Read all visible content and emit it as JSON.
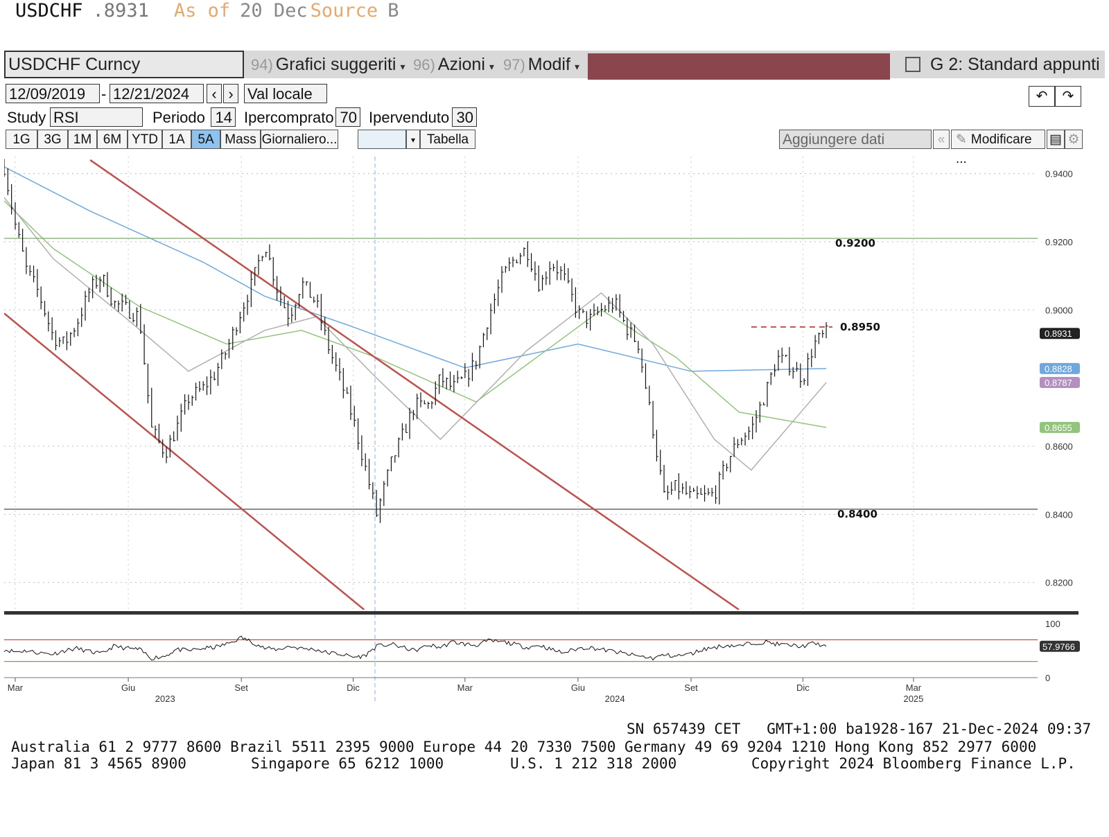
{
  "header": {
    "security": "USDCHF",
    "price": ".8931",
    "as_of_label": "As of",
    "as_of_date": "20 Dec",
    "source_label": "Source",
    "source_value": "B"
  },
  "menubar": {
    "security_field": "USDCHF Curncy",
    "item1_num": "94)",
    "item1_label": "Grafici suggeriti",
    "item2_num": "96)",
    "item2_label": "Azioni",
    "item3_num": "97)",
    "item3_label": "Modif",
    "template_label": "G 2: Standard appunti"
  },
  "controls": {
    "start_date": "12/09/2019",
    "end_date": "12/21/2024",
    "currency": "Val locale",
    "study_label": "Study",
    "study_value": "RSI",
    "period_label": "Periodo",
    "period_value": "14",
    "overbought_label": "Ipercomprato",
    "overbought_value": "70",
    "oversold_label": "Ipervenduto",
    "oversold_value": "30"
  },
  "tabs": [
    "1G",
    "3G",
    "1M",
    "6M",
    "YTD",
    "1A",
    "5A",
    "Mass",
    "Giornaliero..."
  ],
  "active_tab": "5A",
  "table_label": "Tabella",
  "add_data_label": "Aggiungere dati",
  "edit_label": "Modificare ...",
  "chart_data": {
    "type": "line",
    "title": "",
    "xlabel": "",
    "ylabel": "",
    "ylim": [
      0.812,
      0.945
    ],
    "y_ticks": [
      "0.9400",
      "0.9200",
      "0.9000",
      "0.8600",
      "0.8400",
      "0.8200"
    ],
    "y_tick_values": [
      0.94,
      0.92,
      0.9,
      0.86,
      0.84,
      0.82
    ],
    "x_tick_labels": [
      "Mar",
      "Giu",
      "Set",
      "Dic",
      "Mar",
      "Giu",
      "Set",
      "Dic",
      "Mar"
    ],
    "x_tick_dates": [
      "2023-03-01",
      "2023-06-01",
      "2023-09-01",
      "2023-12-01",
      "2024-03-01",
      "2024-06-01",
      "2024-09-01",
      "2024-12-01",
      "2025-03-01"
    ],
    "x_year_labels": [
      "2023",
      "2024",
      "2025"
    ],
    "x_year_dates": [
      "2023-07-01",
      "2024-07-01",
      "2025-03-01"
    ],
    "x_range": [
      "2023-02-20",
      "2025-06-10"
    ],
    "price_series": {
      "name": "USDCHF",
      "dates": [
        "2023-02-20",
        "2023-03-01",
        "2023-03-10",
        "2023-03-20",
        "2023-04-01",
        "2023-04-10",
        "2023-04-20",
        "2023-05-01",
        "2023-05-10",
        "2023-05-20",
        "2023-06-01",
        "2023-06-10",
        "2023-06-20",
        "2023-07-01",
        "2023-07-10",
        "2023-07-20",
        "2023-08-01",
        "2023-08-10",
        "2023-08-20",
        "2023-09-01",
        "2023-09-10",
        "2023-09-20",
        "2023-10-01",
        "2023-10-10",
        "2023-10-20",
        "2023-11-01",
        "2023-11-10",
        "2023-11-20",
        "2023-12-01",
        "2023-12-10",
        "2023-12-20",
        "2024-01-01",
        "2024-01-10",
        "2024-01-20",
        "2024-02-01",
        "2024-02-10",
        "2024-02-20",
        "2024-03-01",
        "2024-03-10",
        "2024-03-20",
        "2024-04-01",
        "2024-04-10",
        "2024-04-20",
        "2024-05-01",
        "2024-05-10",
        "2024-05-20",
        "2024-06-01",
        "2024-06-10",
        "2024-06-20",
        "2024-07-01",
        "2024-07-10",
        "2024-07-20",
        "2024-08-01",
        "2024-08-10",
        "2024-08-20",
        "2024-09-01",
        "2024-09-10",
        "2024-09-20",
        "2024-10-01",
        "2024-10-10",
        "2024-10-20",
        "2024-11-01",
        "2024-11-10",
        "2024-11-20",
        "2024-12-01",
        "2024-12-10",
        "2024-12-20"
      ],
      "values": [
        0.942,
        0.925,
        0.912,
        0.905,
        0.892,
        0.89,
        0.896,
        0.906,
        0.91,
        0.902,
        0.9,
        0.898,
        0.865,
        0.858,
        0.865,
        0.874,
        0.877,
        0.881,
        0.888,
        0.9,
        0.908,
        0.92,
        0.905,
        0.898,
        0.908,
        0.902,
        0.89,
        0.88,
        0.868,
        0.855,
        0.84,
        0.855,
        0.863,
        0.872,
        0.872,
        0.88,
        0.877,
        0.88,
        0.885,
        0.898,
        0.91,
        0.915,
        0.918,
        0.907,
        0.914,
        0.91,
        0.899,
        0.897,
        0.9,
        0.902,
        0.895,
        0.89,
        0.865,
        0.845,
        0.848,
        0.845,
        0.845,
        0.846,
        0.856,
        0.862,
        0.865,
        0.876,
        0.886,
        0.884,
        0.88,
        0.89,
        0.8931
      ]
    },
    "moving_averages": [
      {
        "color": "#6fa8dc",
        "dates": [
          "2023-02-20",
          "2023-05-01",
          "2023-08-01",
          "2023-09-20",
          "2023-12-01",
          "2024-03-01",
          "2024-06-01",
          "2024-09-01",
          "2024-12-20"
        ],
        "values": [
          0.942,
          0.929,
          0.914,
          0.904,
          0.895,
          0.883,
          0.89,
          0.882,
          0.8828
        ]
      },
      {
        "color": "#93c47d",
        "dates": [
          "2023-02-20",
          "2023-04-01",
          "2023-06-10",
          "2023-08-20",
          "2023-10-20",
          "2023-12-20",
          "2024-03-10",
          "2024-06-20",
          "2024-08-20",
          "2024-10-10",
          "2024-12-20"
        ],
        "values": [
          0.932,
          0.918,
          0.901,
          0.89,
          0.894,
          0.886,
          0.873,
          0.9,
          0.886,
          0.87,
          0.8655
        ]
      },
      {
        "color": "#b0b0b0",
        "dates": [
          "2023-02-20",
          "2023-04-01",
          "2023-06-01",
          "2023-07-20",
          "2023-09-20",
          "2023-11-01",
          "2023-12-20",
          "2024-02-10",
          "2024-04-20",
          "2024-06-20",
          "2024-08-01",
          "2024-09-20",
          "2024-10-20",
          "2024-12-20"
        ],
        "values": [
          0.933,
          0.915,
          0.897,
          0.882,
          0.894,
          0.898,
          0.88,
          0.862,
          0.888,
          0.905,
          0.89,
          0.862,
          0.853,
          0.8787
        ]
      }
    ],
    "channel_lines": [
      {
        "color": "#c0504d",
        "points": [
          [
            "2023-02-20",
            0.899
          ],
          [
            "2023-12-10",
            0.812
          ]
        ]
      },
      {
        "color": "#c0504d",
        "points": [
          [
            "2023-05-01",
            0.944
          ],
          [
            "2024-10-10",
            0.812
          ]
        ]
      }
    ],
    "horizontal_lines": [
      {
        "label": "0.9200",
        "value": 0.921,
        "color": "#7aa86e"
      },
      {
        "label": "0.8400",
        "value": 0.8415,
        "color": "#333333"
      },
      {
        "label": "0.8950",
        "value": 0.895,
        "color": "#c0504d",
        "dashed": true,
        "start": "2024-10-20",
        "end": "2024-12-25"
      }
    ],
    "last_price_labels": [
      {
        "text": "0.8931",
        "value": 0.8931,
        "bg": "#222222",
        "fg": "#ffffff"
      },
      {
        "text": "0.8828",
        "value": 0.8828,
        "bg": "#6fa8dc",
        "fg": "#ffffff"
      },
      {
        "text": "0.8787",
        "value": 0.8787,
        "bg": "#b48fc0",
        "fg": "#ffffff"
      },
      {
        "text": "0.8655",
        "value": 0.8655,
        "bg": "#93c47d",
        "fg": "#ffffff"
      }
    ],
    "rsi": {
      "ticks": [
        "100",
        "0"
      ],
      "overbought": 70,
      "oversold": 30,
      "last_label": "57.9766",
      "values": [
        52,
        48,
        50,
        46,
        44,
        50,
        54,
        48,
        44,
        58,
        54,
        52,
        36,
        40,
        52,
        50,
        54,
        56,
        62,
        74,
        66,
        54,
        52,
        58,
        54,
        52,
        46,
        44,
        38,
        40,
        58,
        62,
        56,
        50,
        60,
        56,
        66,
        62,
        60,
        68,
        66,
        62,
        56,
        60,
        52,
        46,
        54,
        56,
        52,
        48,
        44,
        40,
        36,
        42,
        40,
        44,
        52,
        56,
        60,
        58,
        64,
        66,
        62,
        60,
        58,
        64,
        58
      ]
    }
  },
  "footer": {
    "line1_right": "SN 657439 CET   GMT+1:00 ba1928-167 21-Dec-2024 09:37",
    "line2": "Australia 61 2 9777 8600 Brazil 5511 2395 9000 Europe 44 20 7330 7500 Germany 49 69 9204 1210 Hong Kong 852 2977 6000",
    "line3_left": "Japan 81 3 4565 8900",
    "line3_mid1": "Singapore 65 6212 1000",
    "line3_mid2": "U.S. 1 212 318 2000",
    "line3_right": "Copyright 2024 Bloomberg Finance L.P."
  }
}
